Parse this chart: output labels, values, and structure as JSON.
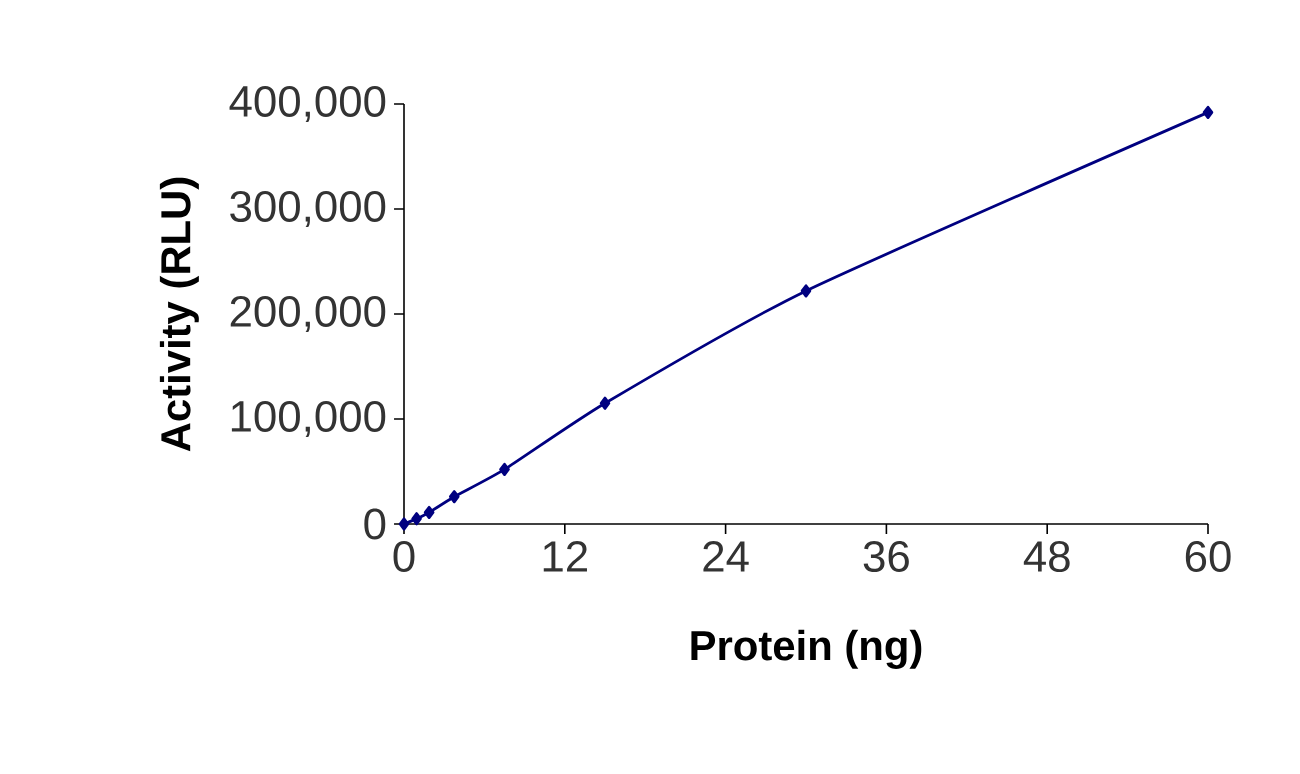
{
  "chart_data": {
    "type": "line",
    "xlabel": "Protein (ng)",
    "ylabel": "Activity (RLU)",
    "x": [
      0,
      0.94,
      1.875,
      3.75,
      7.5,
      15,
      30,
      60
    ],
    "series": [
      {
        "color": "#000080",
        "values": [
          0,
          5000,
          11000,
          26000,
          52000,
          115000,
          222000,
          392000
        ]
      }
    ],
    "xlim": [
      0,
      60
    ],
    "xticks": [
      0,
      12,
      24,
      36,
      48,
      60
    ],
    "ylim": [
      0,
      400000
    ],
    "yticks": [
      0,
      {
        "value": 100000,
        "label": "100,000"
      },
      {
        "value": 200000,
        "label": "200,000"
      },
      {
        "value": 300000,
        "label": "300,000"
      },
      {
        "value": 400000,
        "label": "400,000"
      }
    ],
    "marker": "diamond",
    "line_style": "solid"
  }
}
